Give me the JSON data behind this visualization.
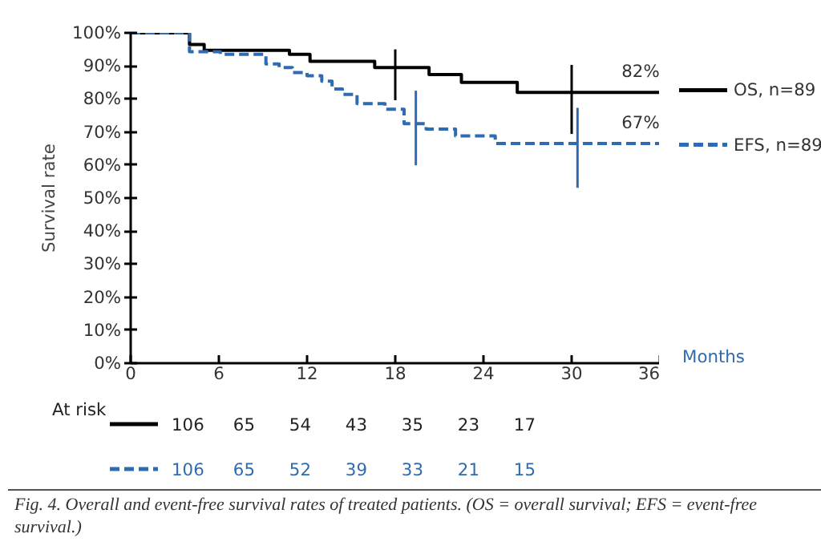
{
  "chart_data": {
    "type": "step",
    "ylabel": "Survival rate",
    "xlabel": "Months",
    "xlim": [
      0,
      36
    ],
    "xticks": [
      0,
      6,
      12,
      18,
      24,
      30,
      36
    ],
    "ylim": [
      0,
      100
    ],
    "yticks": [
      {
        "value": 0,
        "label": "0%"
      },
      {
        "value": 10,
        "label": "10%"
      },
      {
        "value": 20,
        "label": "20%"
      },
      {
        "value": 30,
        "label": "30%"
      },
      {
        "value": 40,
        "label": "40%"
      },
      {
        "value": 50,
        "label": "50%"
      },
      {
        "value": 60,
        "label": "60%"
      },
      {
        "value": 70,
        "label": "70%"
      },
      {
        "value": 80,
        "label": "80%"
      },
      {
        "value": 90,
        "label": "90%"
      },
      {
        "value": 100,
        "label": "100%"
      }
    ],
    "grid": false,
    "legend": "right",
    "series": [
      {
        "name": "OS, n=89",
        "color": "#000000",
        "line_style": "solid",
        "x": [
          0,
          4,
          5,
          10.8,
          12.2,
          16.6,
          18,
          20.3,
          22.5,
          26.3,
          30,
          36
        ],
        "values": [
          100,
          96.5,
          94.7,
          93.5,
          91.4,
          89.5,
          89.5,
          87.4,
          85,
          82,
          82,
          82
        ],
        "errors": [
          null,
          null,
          null,
          null,
          null,
          null,
          [
            79.6,
            95
          ],
          null,
          null,
          null,
          [
            69.4,
            90.3
          ],
          null
        ]
      },
      {
        "name": "EFS, n=89",
        "color": "#2e6bb0",
        "line_style": "dashed",
        "x": [
          0,
          4,
          6.1,
          9.2,
          10.1,
          11,
          12,
          13,
          13.7,
          14.4,
          15.4,
          17.3,
          18.6,
          19.4,
          20.1,
          22.1,
          24.8,
          30.4,
          36
        ],
        "values": [
          100,
          94.3,
          93.5,
          90.6,
          89.5,
          88,
          87,
          85.4,
          83,
          81.4,
          78.6,
          76.9,
          72.5,
          72.5,
          70.9,
          68.8,
          66.5,
          66.5,
          66.5
        ],
        "errors": [
          null,
          null,
          null,
          null,
          null,
          null,
          null,
          null,
          null,
          null,
          null,
          null,
          null,
          [
            59.9,
            82.5
          ],
          null,
          null,
          null,
          [
            53.1,
            77.3
          ],
          null
        ]
      }
    ],
    "annotations": [
      "82%",
      "67%",
      "At risk",
      "106 65 54 43 35 23 17",
      "106 65 52 39 33 21 15",
      "Fig. 4. Overall and event-free survival rates of treated patients. (OS = overall survival; EFS = event-free survival.)"
    ]
  }
}
